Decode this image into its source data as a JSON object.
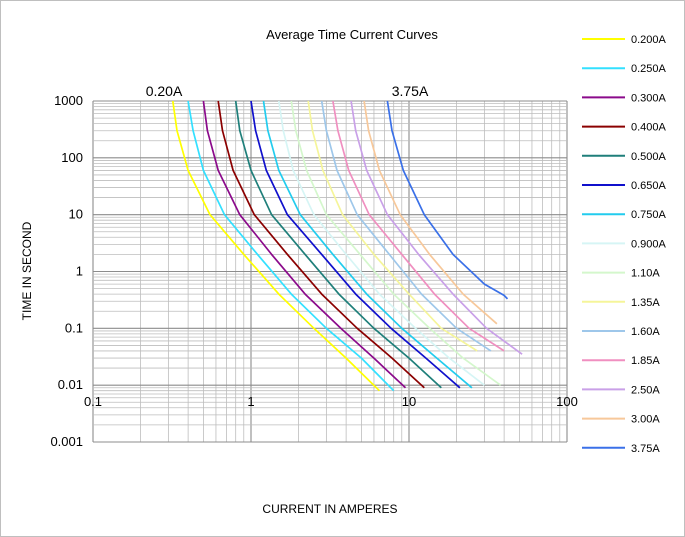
{
  "chart_data": {
    "type": "line",
    "title": "Average Time Current Curves",
    "xlabel": "CURRENT IN AMPERES",
    "ylabel": "TIME IN SECOND",
    "x_scale": "log",
    "y_scale": "log",
    "xlim": [
      0.1,
      100
    ],
    "ylim": [
      0.001,
      1000
    ],
    "x_ticks": [
      "0.1",
      "1",
      "10",
      "100"
    ],
    "y_ticks": [
      "1000",
      "100",
      "10",
      "1",
      "0.1",
      "0.01",
      "0.001"
    ],
    "grid": true,
    "legend_position": "right",
    "annotations": [
      "0.20A",
      "3.75A"
    ],
    "series": [
      {
        "name": "0.200A",
        "color": "#ffff00",
        "x": [
          0.32,
          0.34,
          0.4,
          0.55,
          0.9,
          1.5,
          2.5,
          4,
          6.5
        ],
        "y": [
          1000,
          300,
          60,
          10,
          2,
          0.4,
          0.1,
          0.03,
          0.008
        ]
      },
      {
        "name": "0.250A",
        "color": "#33e0ff",
        "x": [
          0.4,
          0.43,
          0.5,
          0.68,
          1.1,
          1.8,
          3,
          5,
          8
        ],
        "y": [
          1000,
          300,
          60,
          10,
          2,
          0.4,
          0.1,
          0.03,
          0.008
        ]
      },
      {
        "name": "0.300A",
        "color": "#8b0a8b",
        "x": [
          0.5,
          0.53,
          0.62,
          0.85,
          1.35,
          2.2,
          3.7,
          6,
          9.5
        ],
        "y": [
          1000,
          300,
          60,
          10,
          2,
          0.4,
          0.1,
          0.03,
          0.009
        ]
      },
      {
        "name": "0.400A",
        "color": "#8b0000",
        "x": [
          0.62,
          0.66,
          0.77,
          1.05,
          1.7,
          2.8,
          4.7,
          7.8,
          12.5
        ],
        "y": [
          1000,
          300,
          60,
          10,
          2,
          0.4,
          0.1,
          0.03,
          0.009
        ]
      },
      {
        "name": "0.500A",
        "color": "#1f7f7a",
        "x": [
          0.8,
          0.85,
          1.0,
          1.35,
          2.2,
          3.6,
          6,
          10,
          16
        ],
        "y": [
          1000,
          300,
          60,
          10,
          2,
          0.4,
          0.1,
          0.03,
          0.009
        ]
      },
      {
        "name": "0.650A",
        "color": "#1010cc",
        "x": [
          1.0,
          1.07,
          1.25,
          1.7,
          2.8,
          4.6,
          7.7,
          12.8,
          21
        ],
        "y": [
          1000,
          300,
          60,
          10,
          2,
          0.4,
          0.1,
          0.03,
          0.009
        ]
      },
      {
        "name": "0.750A",
        "color": "#22ccee",
        "x": [
          1.2,
          1.28,
          1.5,
          2.05,
          3.3,
          5.4,
          9,
          15,
          25
        ],
        "y": [
          1000,
          300,
          60,
          10,
          2,
          0.4,
          0.1,
          0.03,
          0.009
        ]
      },
      {
        "name": "0.900A",
        "color": "#d6f5f5",
        "x": [
          1.5,
          1.6,
          1.85,
          2.5,
          4,
          6.5,
          11,
          18,
          30
        ],
        "y": [
          1000,
          300,
          60,
          10,
          2,
          0.4,
          0.1,
          0.03,
          0.01
        ]
      },
      {
        "name": "1.10A",
        "color": "#d4f7cc",
        "x": [
          1.8,
          1.92,
          2.25,
          3.0,
          4.9,
          8,
          13.5,
          22,
          38
        ],
        "y": [
          1000,
          300,
          60,
          10,
          2,
          0.4,
          0.1,
          0.03,
          0.01
        ]
      },
      {
        "name": "1.35A",
        "color": "#f5f59a",
        "x": [
          2.3,
          2.45,
          2.85,
          3.8,
          6,
          10,
          16,
          27
        ],
        "y": [
          1000,
          300,
          60,
          10,
          2,
          0.4,
          0.1,
          0.04
        ]
      },
      {
        "name": "1.60A",
        "color": "#9ec7ea",
        "x": [
          2.8,
          3.0,
          3.5,
          4.7,
          7.5,
          12,
          20,
          33
        ],
        "y": [
          1000,
          300,
          60,
          10,
          2,
          0.4,
          0.1,
          0.04
        ]
      },
      {
        "name": "1.85A",
        "color": "#f08fc0",
        "x": [
          3.3,
          3.55,
          4.15,
          5.6,
          9,
          14.5,
          24,
          40
        ],
        "y": [
          1000,
          300,
          60,
          10,
          2,
          0.4,
          0.1,
          0.04
        ]
      },
      {
        "name": "2.50A",
        "color": "#c9a0e8",
        "x": [
          4.3,
          4.6,
          5.4,
          7.3,
          11.5,
          19,
          31,
          52
        ],
        "y": [
          1000,
          300,
          60,
          10,
          2,
          0.4,
          0.1,
          0.035
        ]
      },
      {
        "name": "3.00A",
        "color": "#f7c89a",
        "x": [
          5.2,
          5.55,
          6.5,
          8.8,
          13.5,
          22,
          36
        ],
        "y": [
          1000,
          300,
          60,
          10,
          2,
          0.4,
          0.12
        ]
      },
      {
        "name": "3.75A",
        "color": "#3a70e8",
        "x": [
          7.3,
          7.8,
          9.2,
          12.5,
          19,
          30,
          40,
          42
        ],
        "y": [
          1000,
          300,
          60,
          10,
          2,
          0.6,
          0.38,
          0.33
        ]
      }
    ]
  }
}
